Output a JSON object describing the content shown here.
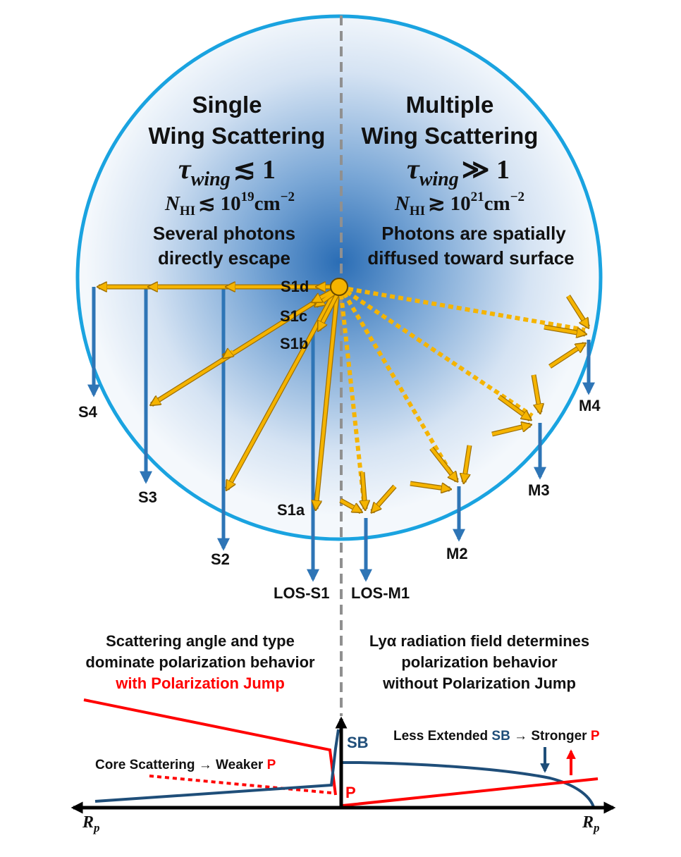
{
  "left_panel": {
    "title_line1": "Single",
    "title_line2": "Wing Scattering",
    "tau_symbol": "τ",
    "tau_sub": "wing",
    "tau_rel": "≲ 1",
    "nhi_prefix": "N",
    "nhi_sub": "HI",
    "nhi_rel": "≲ 10",
    "nhi_exp": "19",
    "nhi_unit": "cm",
    "nhi_unit_exp": "−2",
    "desc_line1": "Several photons",
    "desc_line2": "directly escape"
  },
  "right_panel": {
    "title_line1": "Multiple",
    "title_line2": "Wing Scattering",
    "tau_symbol": "τ",
    "tau_sub": "wing",
    "tau_rel": "≫ 1",
    "nhi_prefix": "N",
    "nhi_sub": "HI",
    "nhi_rel": "≳ 10",
    "nhi_exp": "21",
    "nhi_unit": "cm",
    "nhi_unit_exp": "−2",
    "desc_line1": "Photons are spatially",
    "desc_line2": "diffused toward surface"
  },
  "photon_labels": {
    "s1d": "S1d",
    "s1c": "S1c",
    "s1b": "S1b",
    "s1a": "S1a",
    "s2": "S2",
    "s3": "S3",
    "s4": "S4",
    "los_s1": "LOS-S1",
    "los_m1": "LOS-M1",
    "m2": "M2",
    "m3": "M3",
    "m4": "M4"
  },
  "bottom_left_caption": {
    "line1": "Scattering angle and type",
    "line2": "dominate polarization behavior",
    "line3": "with Polarization Jump"
  },
  "bottom_right_caption": {
    "line1": "Lyα radiation field determines",
    "line2": "polarization behavior",
    "line3": "without Polarization Jump"
  },
  "profile_plot": {
    "core_scattering_prefix": "Core Scattering → Weaker ",
    "core_scattering_p": "P",
    "less_extended_prefix": "Less Extended ",
    "less_extended_sb": "SB",
    "less_extended_mid": " → Stronger ",
    "less_extended_p": "P",
    "sb_label": "SB",
    "p_label": "P",
    "axis_left_label": "R",
    "axis_left_sub": "p",
    "axis_right_label": "R",
    "axis_right_sub": "p"
  },
  "colors": {
    "sphere_outline": "#1aa3e0",
    "sphere_core": "#2a6db5",
    "photon_path": "#f5b400",
    "photon_outline": "#a07000",
    "escape_arrow": "#2e75b6",
    "sb_curve": "#1f4e79",
    "polarization_curve": "#ff0000",
    "divider": "#909090",
    "axis": "#000000"
  }
}
